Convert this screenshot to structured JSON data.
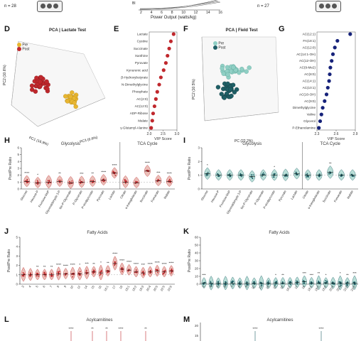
{
  "top": {
    "n_left": "n = 28",
    "n_right": "n = 27",
    "power_label": "Power Output (watts/kg)",
    "power_ticks": [
      "2",
      "4",
      "6",
      "8",
      "10",
      "12",
      "14",
      "16"
    ],
    "y_label_frag": "Bl"
  },
  "panels": {
    "D": {
      "letter": "D",
      "title": "PCA | Lactate Test",
      "legend": [
        "Pre",
        "Post"
      ],
      "axes": [
        "PC1 (16.9%)",
        "PC2 (10.6%)",
        "PC3 (6.6%)"
      ]
    },
    "E": {
      "letter": "E",
      "xlabel": "VIP Score",
      "ticks": [
        "2.0",
        "2.5",
        "3.0"
      ],
      "metabolites": [
        "Lactate",
        "Cystine",
        "Succinate",
        "Xanthine",
        "Pyruvate",
        "Kynurenic acid",
        "β-Hydroxybutyrate",
        "N-Dimethylglycine",
        "Phosphate",
        "AC(2:0)",
        "AC(12:0)",
        "ADP-Ribose",
        "Malate",
        "γ-Glutamyl-Alanine"
      ],
      "vip": [
        2.88,
        2.78,
        2.72,
        2.66,
        2.6,
        2.52,
        2.42,
        2.36,
        2.29,
        2.24,
        2.19,
        2.14,
        2.11,
        2.07
      ]
    },
    "F": {
      "letter": "F",
      "title": "PCA | Field Test",
      "legend": [
        "Pre",
        "Post"
      ],
      "axes": [
        "PC (22.2%)",
        "PC2 (10.5%)"
      ]
    },
    "G": {
      "letter": "G",
      "xlabel": "VIP Score",
      "ticks": [
        "2.3",
        "2.6",
        "2.9"
      ],
      "metabolites": [
        "AC(12:1)",
        "FA(18:1)",
        "AC(12:0)",
        "AC(14:1-OH)",
        "AC(12-OH)",
        "AC(9-Me2)",
        "AC(8:0)",
        "AC(14:1)",
        "AC(10:1)",
        "AC(10-OH)",
        "AC(9:0)",
        "Dimethylglycine",
        "Valine",
        "Glycerol",
        "P-Ethanolamine"
      ],
      "vip": [
        2.82,
        2.62,
        2.58,
        2.55,
        2.53,
        2.51,
        2.5,
        2.49,
        2.47,
        2.45,
        2.42,
        2.39,
        2.37,
        2.35,
        2.33
      ]
    },
    "H": {
      "letter": "H",
      "ylabel": "Post/Pre Ratio",
      "groups": [
        "Glycolysis",
        "TCA Cycle"
      ],
      "categories": [
        "Glucose",
        "Hexose-P",
        "Fructose-bisP",
        "Glyceraldehyde 3-P",
        "bis-P-Glycerate",
        "P-Glycerate",
        "P-enolpyruvate",
        "Pyruvate",
        "Lactate",
        "Citrate",
        "α-Ketoglutarate",
        "Succinate",
        "Fumarate",
        "Malate"
      ],
      "medians": [
        1.1,
        0.9,
        1.0,
        1.1,
        0.9,
        1.0,
        1.1,
        1.3,
        2.3,
        1.0,
        0.9,
        2.6,
        1.2,
        1.1
      ],
      "stars": [
        "****",
        "*",
        "",
        "**",
        "",
        "***",
        "**",
        "****",
        "****",
        "",
        "",
        "****",
        "***",
        "****"
      ],
      "yticks": [
        "0",
        "1",
        "2",
        "3",
        "4",
        "5",
        "6"
      ]
    },
    "I": {
      "letter": "I",
      "ylabel": "Post/Pre Ratio",
      "groups": [
        "Glycolysis",
        "TCA Cycle"
      ],
      "categories": [
        "Glucose",
        "Hexose-P",
        "Fructose-bisP",
        "Glyceraldehyde 3-P",
        "bis-P-Glycerate",
        "P-Glycerate",
        "P-enolpyruvate",
        "Pyruvate",
        "Lactate",
        "Citrate",
        "α-Ketoglutarate",
        "Succinate",
        "Fumarate",
        "Malate"
      ],
      "medians": [
        1.1,
        1.0,
        1.0,
        1.0,
        0.9,
        1.0,
        1.0,
        1.0,
        1.1,
        1.0,
        1.0,
        1.2,
        1.0,
        1.0
      ],
      "stars": [
        "*",
        "",
        "",
        "",
        "",
        "",
        "*",
        "",
        "",
        "",
        "",
        "**",
        "",
        ""
      ],
      "yticks": [
        "0",
        "1",
        "2",
        "3"
      ]
    },
    "J": {
      "letter": "J",
      "title": "Fatty Acids",
      "ylabel": "Post/Pre Ratio",
      "categories": [
        "3",
        "4",
        "5",
        "6",
        "7",
        "8",
        "9",
        "10",
        "12",
        "14",
        "15",
        "16",
        "16:1",
        "17",
        "18",
        "18:1",
        "18:2",
        "18:3",
        "20:4",
        "20:5",
        "22:5",
        "22:6"
      ],
      "medians": [
        1.0,
        1.0,
        1.0,
        1.0,
        1.0,
        1.1,
        1.1,
        1.1,
        1.1,
        1.2,
        1.3,
        1.2,
        1.4,
        2.2,
        1.6,
        1.5,
        1.3,
        1.2,
        1.3,
        1.4,
        1.3,
        1.4
      ],
      "stars": [
        "",
        "",
        "**",
        "**",
        "**",
        "****",
        "****",
        "****",
        "*",
        "***",
        "**",
        "*",
        "**",
        "****",
        "****",
        "****",
        "****",
        "***",
        "****",
        "****",
        "****",
        "****"
      ],
      "yticks": [
        "0",
        "1",
        "2",
        "3",
        "4",
        "5"
      ]
    },
    "K": {
      "letter": "K",
      "title": "Fatty Acids",
      "ylabel": "Post/Pre Ratio",
      "categories": [
        "3",
        "4",
        "5",
        "6",
        "7",
        "8",
        "9",
        "10",
        "12",
        "14",
        "15",
        "16",
        "16:1",
        "17",
        "18",
        "18:1",
        "18:2",
        "18:3",
        "20:4",
        "20:5",
        "22:5",
        "22:6"
      ],
      "medians": [
        1.2,
        1.0,
        1.0,
        1.0,
        1.0,
        1.0,
        1.0,
        1.0,
        1.0,
        1.0,
        1.2,
        1.2,
        1.5,
        2.0,
        3.0,
        1.5,
        1.4,
        1.3,
        1.2,
        1.2,
        1.3,
        1.5
      ],
      "stars": [
        "***",
        "",
        "",
        "",
        "",
        "",
        "",
        "",
        "",
        "",
        "*",
        "**",
        "",
        "",
        "***",
        "***",
        "**",
        "*",
        "",
        "*",
        "**",
        "***"
      ],
      "yticks": [
        "0",
        "10",
        "20",
        "30",
        "40",
        "50",
        "60"
      ]
    },
    "L": {
      "letter": "L",
      "title": "Acylcarnitines",
      "stars": [
        "****",
        "**",
        "**",
        "****",
        "**"
      ]
    },
    "M": {
      "letter": "M",
      "title": "Acylcarnitines",
      "yticks": [
        "20",
        "15"
      ],
      "stars": [
        "****",
        "****"
      ]
    }
  },
  "colors": {
    "pre_gold": "#e8b631",
    "post_red": "#c0282d",
    "pre_teal": "#8fcfc4",
    "post_teal": "#1f5f66",
    "navy": "#16227a",
    "violin_red": "#d98a7e",
    "violin_teal": "#7fc2b6"
  }
}
